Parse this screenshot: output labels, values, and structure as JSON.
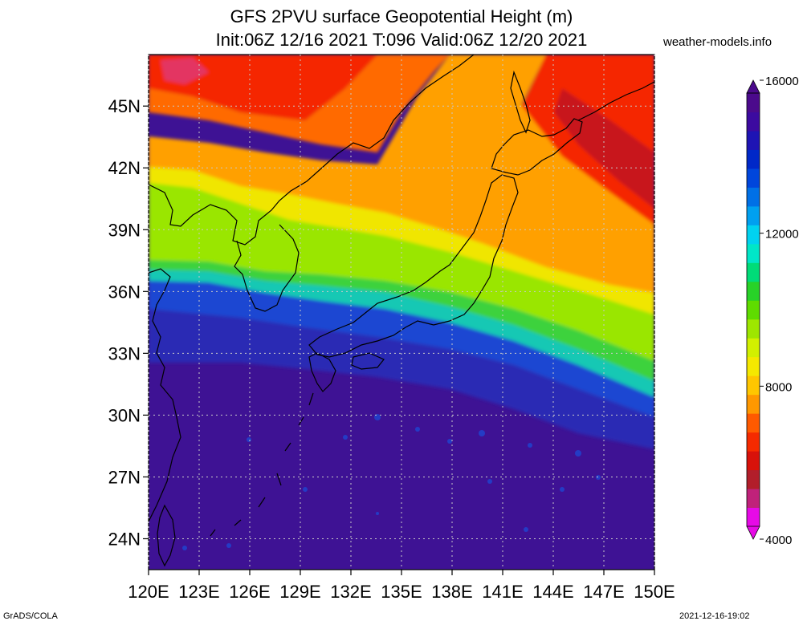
{
  "title_line1": "GFS 2PVU surface Geopotential Height (m)",
  "title_line2": "Init:06Z 12/16 2021 T:096 Valid:06Z 12/20 2021",
  "credit": "weather-models.info",
  "footer_left": "GrADS/COLA",
  "footer_right": "2021-12-16-19:02",
  "lat_labels": [
    "24N",
    "27N",
    "30N",
    "33N",
    "36N",
    "39N",
    "42N",
    "45N"
  ],
  "lon_labels": [
    "120E",
    "123E",
    "126E",
    "129E",
    "132E",
    "135E",
    "138E",
    "141E",
    "144E",
    "147E",
    "150E"
  ],
  "colorbar": {
    "labels": [
      "4000",
      "8000",
      "12000",
      "16000"
    ],
    "colors": [
      "#e60ae6",
      "#c0227a",
      "#b21e2a",
      "#d8120a",
      "#f52a00",
      "#ff5a00",
      "#ff9800",
      "#ffc600",
      "#f5e800",
      "#d2f000",
      "#9ee600",
      "#5fdc00",
      "#28d228",
      "#00dc78",
      "#00e6c8",
      "#00d2f0",
      "#00a0f0",
      "#0070e6",
      "#0046dc",
      "#0028c8",
      "#1e14b4",
      "#3c0aa0",
      "#4b0a8c"
    ]
  },
  "field_colors": {
    "deep_purple": "#3e1294",
    "blue": "#1e3ccd",
    "cyan": "#14c8b4",
    "green": "#5ad21e",
    "yellow": "#f0e600",
    "orange": "#ffa000",
    "red": "#f52800",
    "dark_red": "#c8141e",
    "magenta": "#dc3ca0"
  }
}
